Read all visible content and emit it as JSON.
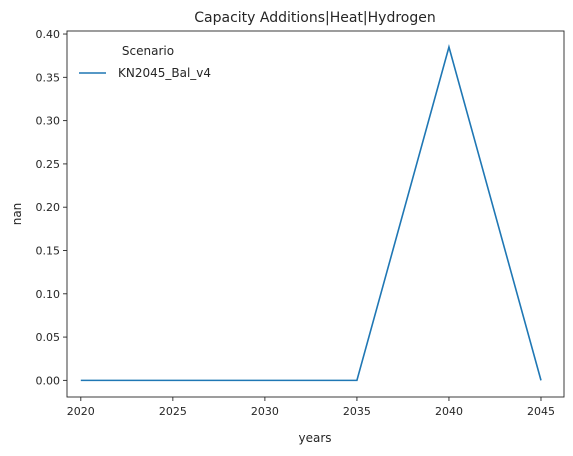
{
  "chart_data": {
    "type": "line",
    "title": "Capacity Additions|Heat|Hydrogen",
    "xlabel": "years",
    "ylabel": "nan",
    "x": [
      2020,
      2025,
      2030,
      2035,
      2040,
      2045
    ],
    "xticks": [
      "2020",
      "2025",
      "2030",
      "2035",
      "2040",
      "2045"
    ],
    "yticks": [
      "0.00",
      "0.05",
      "0.10",
      "0.15",
      "0.20",
      "0.25",
      "0.30",
      "0.35",
      "0.40"
    ],
    "xlim": [
      2019.25,
      2046.25
    ],
    "ylim": [
      -0.0192,
      0.4035
    ],
    "grid": false,
    "legend": {
      "title": "Scenario",
      "placement": "top-left"
    },
    "series": [
      {
        "name": "KN2045_Bal_v4",
        "color": "#1f77b4",
        "values": [
          0.0,
          0.0,
          0.0,
          0.0,
          0.385,
          0.0
        ]
      }
    ]
  }
}
